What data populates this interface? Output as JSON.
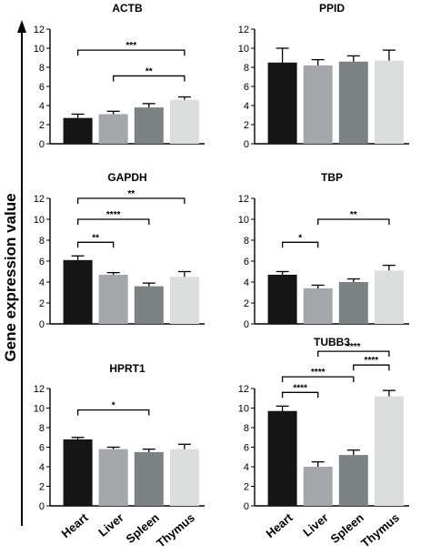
{
  "ylabel": "Gene expression value",
  "colors": [
    "#151515",
    "#a3a7a9",
    "#7c8281",
    "#dcdddd"
  ],
  "chart_data": [
    {
      "type": "bar",
      "title": "ACTB",
      "categories": [
        "Heart",
        "Liver",
        "Spleen",
        "Thymus"
      ],
      "values": [
        2.7,
        3.1,
        3.8,
        4.6
      ],
      "errors": [
        0.4,
        0.3,
        0.4,
        0.3
      ],
      "ylim": [
        0,
        12
      ],
      "yticks": [
        "0",
        "2",
        "4",
        "6",
        "8",
        "10",
        "12"
      ],
      "significance": [
        {
          "from": "Heart",
          "to": "Thymus",
          "y": 9.8,
          "label": "***"
        },
        {
          "from": "Liver",
          "to": "Thymus",
          "y": 7.1,
          "label": "**"
        }
      ]
    },
    {
      "type": "bar",
      "title": "PPID",
      "categories": [
        "Heart",
        "Liver",
        "Spleen",
        "Thymus"
      ],
      "values": [
        8.5,
        8.2,
        8.6,
        8.7
      ],
      "errors": [
        1.5,
        0.6,
        0.6,
        1.1
      ],
      "ylim": [
        0,
        12
      ],
      "yticks": [
        "0",
        "2",
        "4",
        "6",
        "8",
        "10",
        "12"
      ],
      "significance": []
    },
    {
      "type": "bar",
      "title": "GAPDH",
      "categories": [
        "Heart",
        "Liver",
        "Spleen",
        "Thymus"
      ],
      "values": [
        6.1,
        4.7,
        3.6,
        4.5
      ],
      "errors": [
        0.4,
        0.2,
        0.3,
        0.5
      ],
      "ylim": [
        0,
        12
      ],
      "yticks": [
        "0",
        "2",
        "4",
        "6",
        "8",
        "10",
        "12"
      ],
      "significance": [
        {
          "from": "Heart",
          "to": "Thymus",
          "y": 12.0,
          "label": "**"
        },
        {
          "from": "Heart",
          "to": "Spleen",
          "y": 10.0,
          "label": "****"
        },
        {
          "from": "Heart",
          "to": "Liver",
          "y": 7.8,
          "label": "**"
        }
      ]
    },
    {
      "type": "bar",
      "title": "TBP",
      "categories": [
        "Heart",
        "Liver",
        "Spleen",
        "Thymus"
      ],
      "values": [
        4.7,
        3.4,
        4.0,
        5.1
      ],
      "errors": [
        0.3,
        0.3,
        0.3,
        0.5
      ],
      "ylim": [
        0,
        12
      ],
      "yticks": [
        "0",
        "2",
        "4",
        "6",
        "8",
        "10",
        "12"
      ],
      "significance": [
        {
          "from": "Heart",
          "to": "Liver",
          "y": 7.8,
          "label": "*"
        },
        {
          "from": "Liver",
          "to": "Thymus",
          "y": 10.0,
          "label": "**"
        }
      ]
    },
    {
      "type": "bar",
      "title": "HPRT1",
      "categories": [
        "Heart",
        "Liver",
        "Spleen",
        "Thymus"
      ],
      "values": [
        6.8,
        5.8,
        5.5,
        5.8
      ],
      "errors": [
        0.2,
        0.2,
        0.3,
        0.5
      ],
      "ylim": [
        0,
        12
      ],
      "yticks": [
        "0",
        "2",
        "4",
        "6",
        "8",
        "10",
        "12"
      ],
      "significance": [
        {
          "from": "Heart",
          "to": "Spleen",
          "y": 9.8,
          "label": "*"
        }
      ]
    },
    {
      "type": "bar",
      "title": "TUBB3",
      "categories": [
        "Heart",
        "Liver",
        "Spleen",
        "Thymus"
      ],
      "values": [
        9.7,
        4.0,
        5.2,
        11.2
      ],
      "errors": [
        0.5,
        0.5,
        0.5,
        0.6
      ],
      "ylim": [
        0,
        12
      ],
      "yticks": [
        "0",
        "2",
        "4",
        "6",
        "8",
        "10",
        "12"
      ],
      "significance": [
        {
          "from": "Heart",
          "to": "Liver",
          "y": 11.6,
          "label": "****"
        },
        {
          "from": "Heart",
          "to": "Spleen",
          "y": 13.2,
          "label": "****"
        },
        {
          "from": "Spleen",
          "to": "Thymus",
          "y": 14.4,
          "label": "****"
        },
        {
          "from": "Liver",
          "to": "Thymus",
          "y": 15.8,
          "label": "****"
        }
      ]
    }
  ]
}
